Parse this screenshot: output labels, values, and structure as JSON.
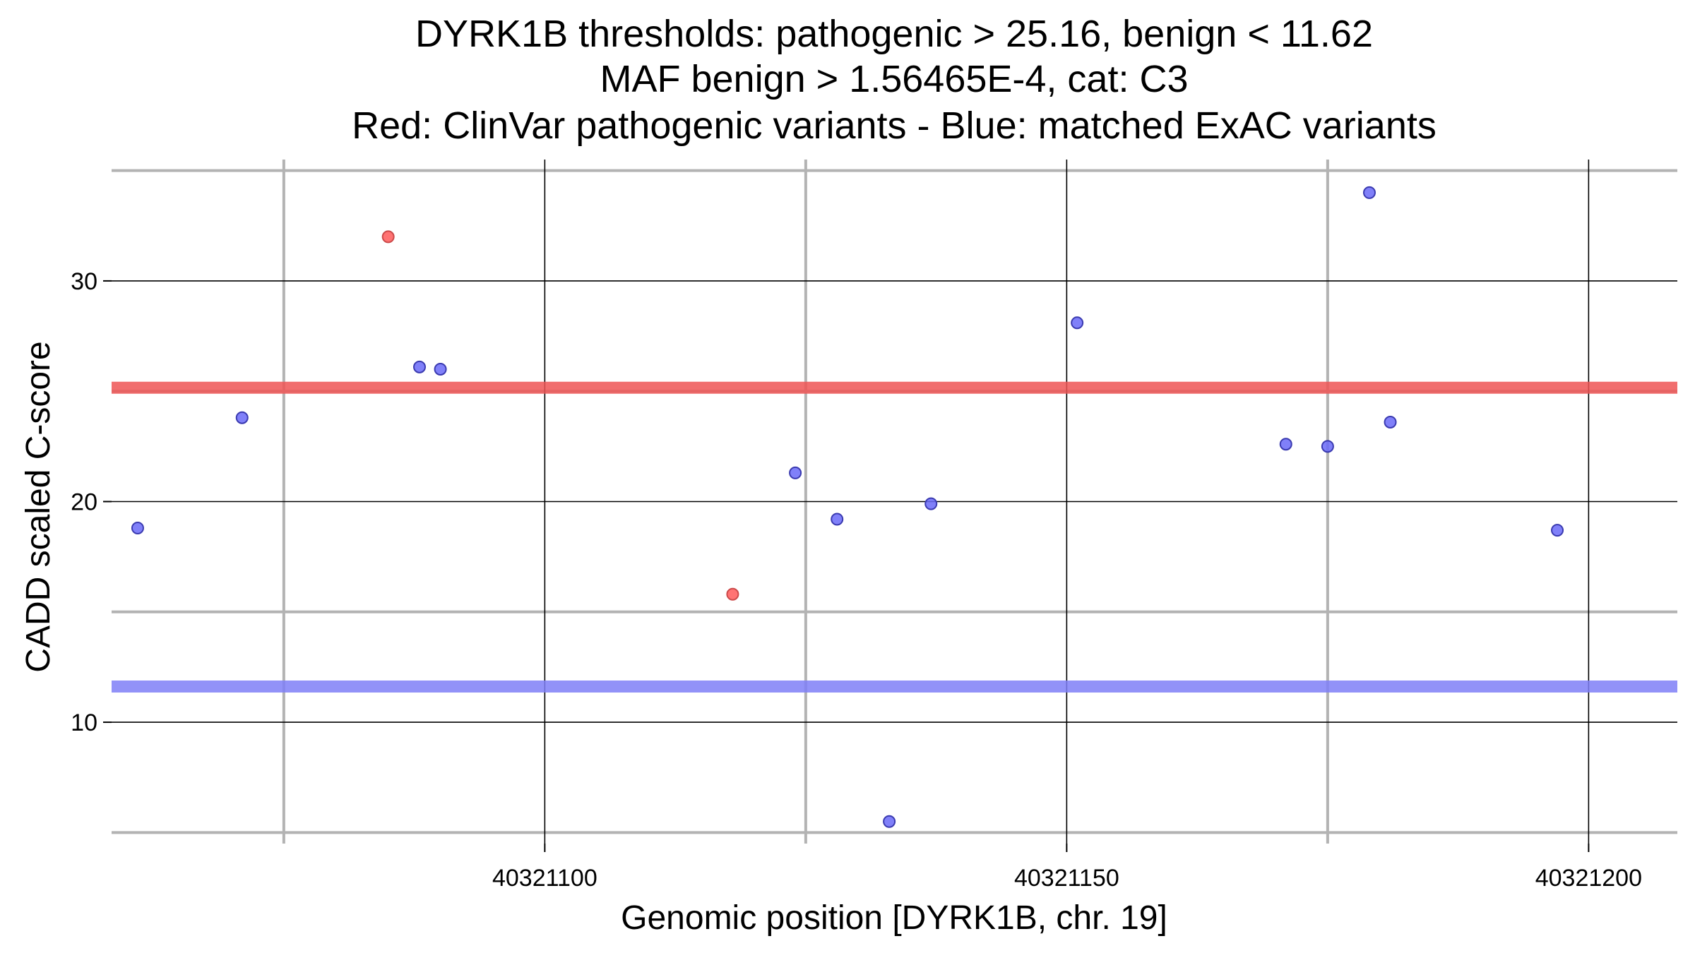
{
  "chart_data": {
    "type": "scatter",
    "title_lines": [
      "DYRK1B thresholds: pathogenic > 25.16, benign < 11.62",
      "MAF benign > 1.56465E-4, cat: C3",
      "Red: ClinVar pathogenic variants - Blue: matched ExAC variants"
    ],
    "xlabel": "Genomic position [DYRK1B, chr. 19]",
    "ylabel": "CADD scaled C-score",
    "xlim": [
      40321058.5,
      40321208.5
    ],
    "ylim": [
      4.5,
      35.5
    ],
    "x_major_ticks": [
      40321100,
      40321150,
      40321200
    ],
    "x_minor_ticks": [
      40321075,
      40321125,
      40321175
    ],
    "x_tick_labels": [
      "40321100",
      "40321150",
      "40321200"
    ],
    "y_major_ticks": [
      10,
      20,
      30
    ],
    "y_minor_ticks": [
      5,
      15,
      25,
      35
    ],
    "y_tick_labels": [
      "10",
      "20",
      "30"
    ],
    "grid": true,
    "legend": "none",
    "thresholds": [
      {
        "value": 25.16,
        "color": "#ee5555"
      },
      {
        "value": 11.62,
        "color": "#7f7ff7"
      }
    ],
    "series": [
      {
        "color": "#ff5a5a",
        "edge": "#cc4a4a",
        "points": [
          {
            "x": 40321085,
            "y": 32.0
          },
          {
            "x": 40321118,
            "y": 15.8
          }
        ]
      },
      {
        "color": "#6a6af8",
        "edge": "#3a3ab0",
        "points": [
          {
            "x": 40321061,
            "y": 18.8
          },
          {
            "x": 40321071,
            "y": 23.8
          },
          {
            "x": 40321088,
            "y": 26.1
          },
          {
            "x": 40321090,
            "y": 26.0
          },
          {
            "x": 40321124,
            "y": 21.3
          },
          {
            "x": 40321128,
            "y": 19.2
          },
          {
            "x": 40321133,
            "y": 5.5
          },
          {
            "x": 40321137,
            "y": 19.9
          },
          {
            "x": 40321151,
            "y": 28.1
          },
          {
            "x": 40321171,
            "y": 22.6
          },
          {
            "x": 40321175,
            "y": 22.5
          },
          {
            "x": 40321179,
            "y": 34.0
          },
          {
            "x": 40321181,
            "y": 23.6
          },
          {
            "x": 40321197,
            "y": 18.7
          }
        ]
      }
    ]
  }
}
